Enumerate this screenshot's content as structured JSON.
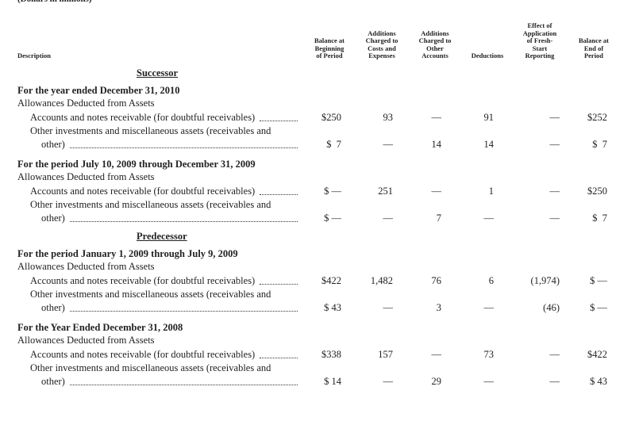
{
  "header": {
    "note": "(Dollars in millions)",
    "columns": [
      [
        "Description"
      ],
      [
        "Balance at",
        "Beginning",
        "of Period"
      ],
      [
        "Additions",
        "Charged to",
        "Costs and",
        "Expenses"
      ],
      [
        "Additions",
        "Charged to",
        "Other",
        "Accounts"
      ],
      [
        "Deductions"
      ],
      [
        "Effect of",
        "Application",
        "of Fresh-",
        "Start",
        "Reporting"
      ],
      [
        "Balance at",
        "End of",
        "Period"
      ]
    ]
  },
  "sections": [
    {
      "title": "Successor",
      "periods": [
        {
          "title": "For the year ended December 31, 2010",
          "group": "Allowances Deducted from Assets",
          "rows": [
            {
              "label": [
                "Accounts and notes receivable (for doubtful receivables)"
              ],
              "values": [
                "$250",
                "93",
                "—",
                "91",
                "—",
                "$252"
              ]
            },
            {
              "label": [
                "Other investments and miscellaneous assets (receivables and",
                "other)"
              ],
              "values": [
                "$  7",
                "—",
                "14",
                "14",
                "—",
                "$  7"
              ]
            }
          ]
        },
        {
          "title": "For the period July 10, 2009 through December 31, 2009",
          "group": "Allowances Deducted from Assets",
          "rows": [
            {
              "label": [
                "Accounts and notes receivable (for doubtful receivables)"
              ],
              "values": [
                "$ —",
                "251",
                "—",
                "1",
                "—",
                "$250"
              ]
            },
            {
              "label": [
                "Other investments and miscellaneous assets (receivables and",
                "other)"
              ],
              "values": [
                "$ —",
                "—",
                "7",
                "—",
                "—",
                "$  7"
              ]
            }
          ]
        }
      ]
    },
    {
      "title": "Predecessor",
      "periods": [
        {
          "title": "For the period January 1, 2009 through July 9, 2009",
          "group": "Allowances Deducted from Assets",
          "rows": [
            {
              "label": [
                "Accounts and notes receivable (for doubtful receivables)"
              ],
              "values": [
                "$422",
                "1,482",
                "76",
                "6",
                "(1,974)",
                "$ —"
              ]
            },
            {
              "label": [
                "Other investments and miscellaneous assets (receivables and",
                "other)"
              ],
              "values": [
                "$ 43",
                "—",
                "3",
                "—",
                "(46)",
                "$ —"
              ]
            }
          ]
        },
        {
          "title": "For the Year Ended December 31, 2008",
          "group": "Allowances Deducted from Assets",
          "rows": [
            {
              "label": [
                "Accounts and notes receivable (for doubtful receivables)"
              ],
              "values": [
                "$338",
                "157",
                "—",
                "73",
                "—",
                "$422"
              ]
            },
            {
              "label": [
                "Other investments and miscellaneous assets (receivables and",
                "other)"
              ],
              "values": [
                "$ 14",
                "—",
                "29",
                "—",
                "—",
                "$ 43"
              ]
            }
          ]
        }
      ]
    }
  ]
}
